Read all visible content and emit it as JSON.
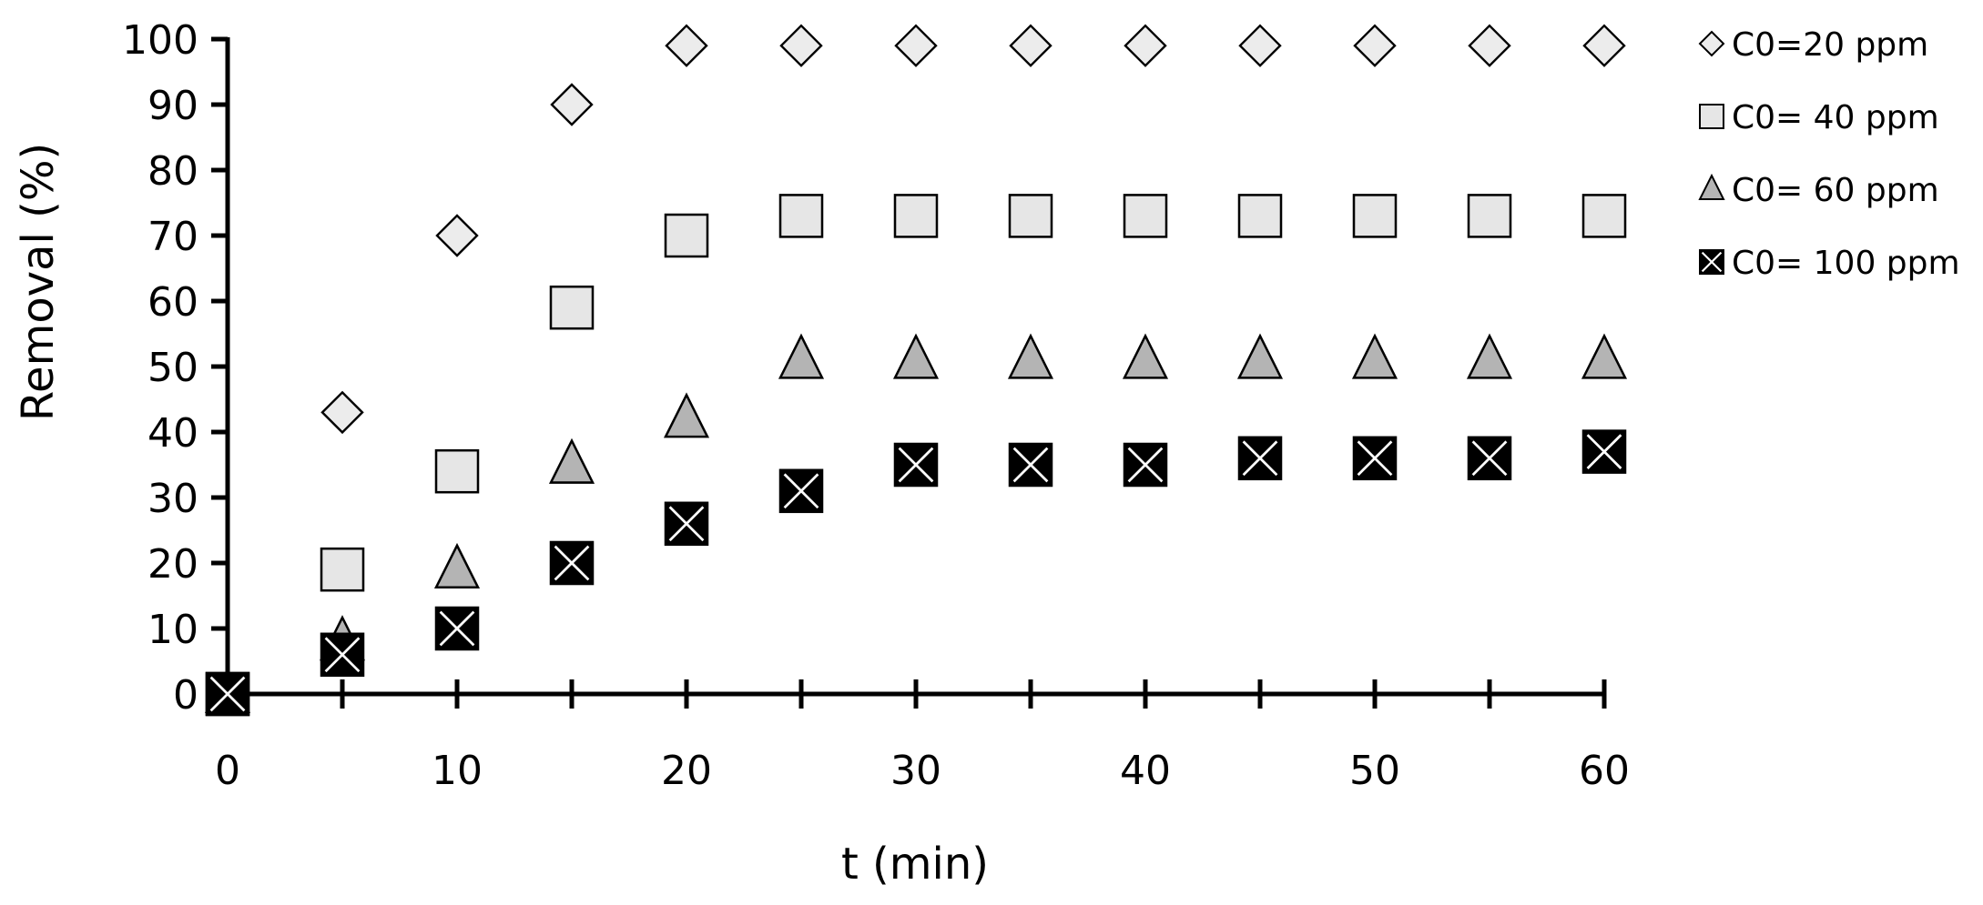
{
  "chart_data": {
    "type": "scatter",
    "title": "",
    "xlabel": "t (min)",
    "ylabel": "Removal  (%)",
    "xlim": [
      0,
      60
    ],
    "ylim": [
      0,
      100
    ],
    "xticks": [
      0,
      10,
      20,
      30,
      40,
      50,
      60
    ],
    "yticks": [
      0,
      10,
      20,
      30,
      40,
      50,
      60,
      70,
      80,
      90,
      100
    ],
    "grid": false,
    "legend_position": "right",
    "x": [
      0,
      5,
      10,
      15,
      20,
      25,
      30,
      35,
      40,
      45,
      50,
      55,
      60
    ],
    "series": [
      {
        "name": "C0=20 ppm",
        "marker": "diamond",
        "fill": "#ececec",
        "values": [
          0,
          43,
          70,
          90,
          99,
          99,
          99,
          99,
          99,
          99,
          99,
          99,
          99
        ]
      },
      {
        "name": "C0= 40 ppm",
        "marker": "square",
        "fill": "#e6e6e6",
        "values": [
          0,
          19,
          34,
          59,
          70,
          73,
          73,
          73,
          73,
          73,
          73,
          73,
          73
        ]
      },
      {
        "name": "C0= 60 ppm",
        "marker": "triangle",
        "fill": "#b4b4b4",
        "values": [
          0,
          8,
          19,
          35,
          42,
          51,
          51,
          51,
          51,
          51,
          51,
          51,
          51
        ]
      },
      {
        "name": "C0= 100 ppm",
        "marker": "x-square",
        "fill": "#000000",
        "values": [
          0,
          6,
          10,
          20,
          26,
          31,
          35,
          35,
          35,
          36,
          36,
          36,
          37
        ]
      }
    ]
  }
}
